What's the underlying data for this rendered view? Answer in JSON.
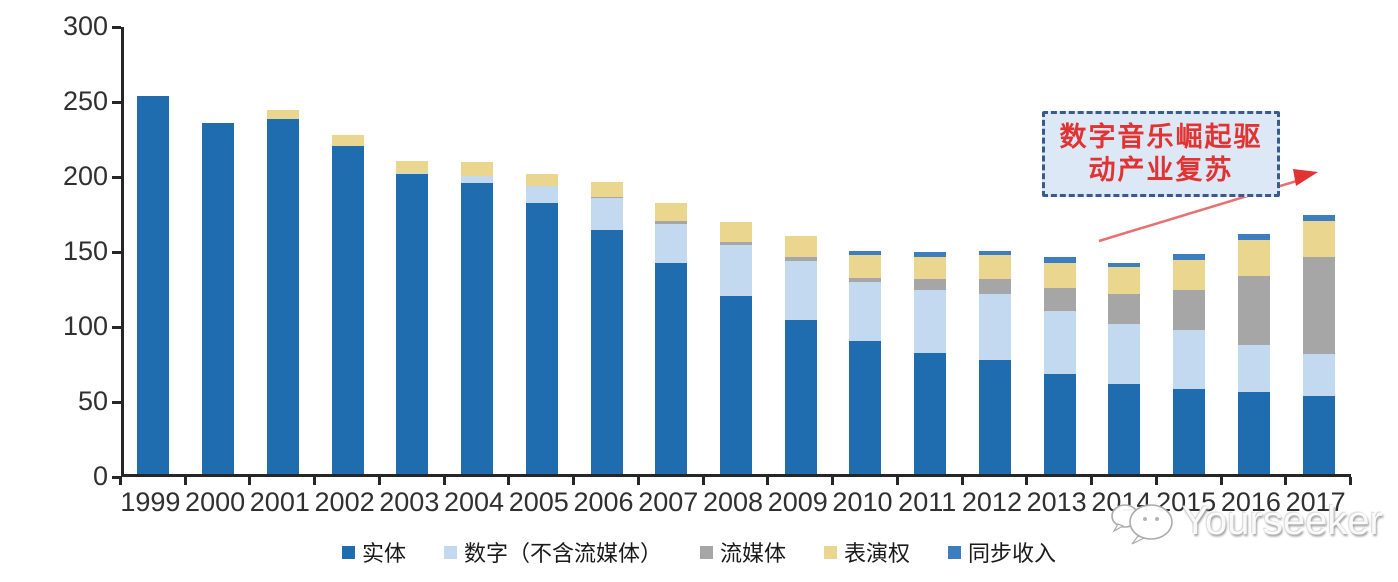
{
  "chart_data": {
    "type": "bar",
    "stacked": true,
    "title": "",
    "xlabel": "",
    "ylabel": "",
    "categories": [
      "1999",
      "2000",
      "2001",
      "2002",
      "2003",
      "2004",
      "2005",
      "2006",
      "2007",
      "2008",
      "2009",
      "2010",
      "2011",
      "2012",
      "2013",
      "2014",
      "2015",
      "2016",
      "2017"
    ],
    "series": [
      {
        "name": "实体",
        "color": "#1f6dae",
        "values": [
          252,
          234,
          237,
          219,
          200,
          194,
          181,
          163,
          141,
          119,
          103,
          89,
          81,
          76,
          67,
          60,
          57,
          55,
          52
        ]
      },
      {
        "name": "数字（不含流媒体）",
        "color": "#c3d9ef",
        "values": [
          0,
          0,
          0,
          0,
          1,
          5,
          11,
          21,
          26,
          34,
          39,
          39,
          42,
          44,
          42,
          40,
          39,
          31,
          28
        ]
      },
      {
        "name": "流媒体",
        "color": "#a6a6a6",
        "values": [
          0,
          0,
          0,
          0,
          0,
          0,
          0,
          1,
          2,
          2,
          3,
          3,
          7,
          10,
          15,
          20,
          27,
          46,
          65
        ]
      },
      {
        "name": "表演权",
        "color": "#ebd690",
        "values": [
          0,
          0,
          6,
          7,
          8,
          9,
          8,
          10,
          12,
          13,
          14,
          15,
          15,
          16,
          17,
          18,
          20,
          24,
          24
        ]
      },
      {
        "name": "同步收入",
        "color": "#3c7ec0",
        "values": [
          0,
          0,
          0,
          0,
          0,
          0,
          0,
          0,
          0,
          0,
          0,
          3,
          3,
          3,
          4,
          3,
          4,
          4,
          4
        ]
      }
    ],
    "totals": [
      252,
      234,
      243,
      226,
      209,
      208,
      200,
      195,
      181,
      168,
      159,
      149,
      148,
      149,
      145,
      141,
      147,
      160,
      173
    ],
    "ylim": [
      0,
      300
    ],
    "y_ticks": [
      0,
      50,
      100,
      150,
      200,
      250,
      300
    ],
    "grid": false,
    "legend_position": "bottom"
  },
  "annotation": {
    "line1": "数字音乐崛起驱",
    "line2": "动产业复苏",
    "box_fill": "#dce8f5",
    "box_border_color": "#3a5a8c",
    "text_color": "#e23333",
    "arrow_color": "#e05050"
  },
  "watermark": {
    "text": "Yourseeker",
    "logo": "chat-bubbles-logo"
  },
  "axis": {
    "line_color": "#262626",
    "label_color": "#303030"
  }
}
